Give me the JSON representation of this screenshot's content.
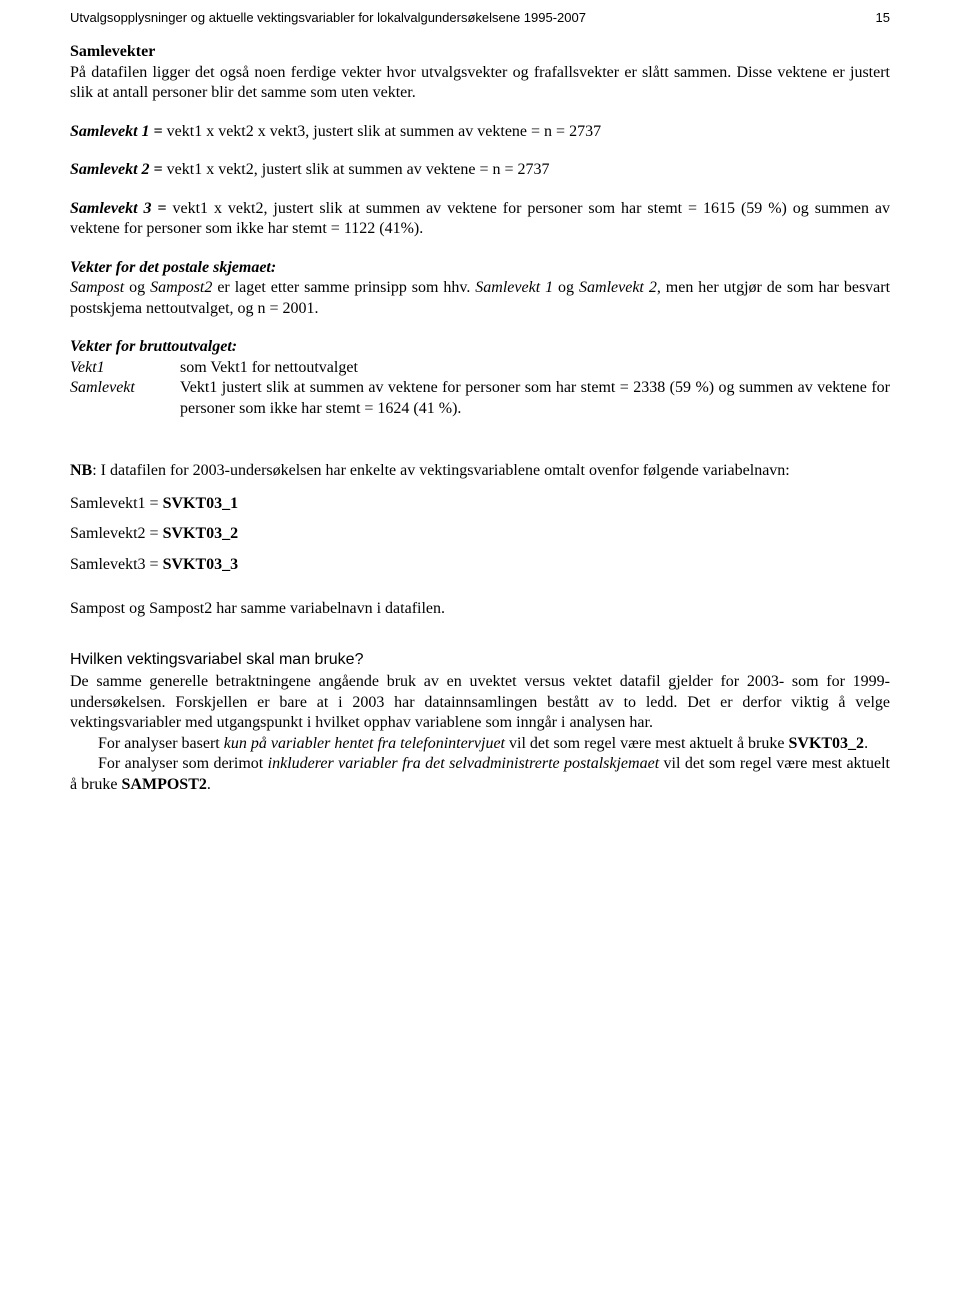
{
  "header": {
    "title": "Utvalgsopplysninger og aktuelle vektingsvariabler for lokalvalgundersøkelsene 1995-2007",
    "page": "15"
  },
  "samlevekter": {
    "heading": "Samlevekter",
    "intro": "På datafilen ligger det også noen ferdige vekter hvor utvalgsvekter og frafallsvekter er slått sammen. Disse vektene er justert slik at antall personer blir det samme som uten vekter.",
    "s1_label": "Samlevekt 1 = ",
    "s1_text": "vekt1 x vekt2 x vekt3, justert slik at summen av vektene = n = 2737",
    "s2_label": "Samlevekt 2 = ",
    "s2_text": "vekt1 x vekt2, justert slik at summen av vektene = n = 2737",
    "s3_label": "Samlevekt 3 = ",
    "s3_text": "vekt1 x vekt2, justert slik at summen av vektene for personer som har stemt = 1615 (59 %) og summen av vektene for personer som ikke har stemt = 1122 (41%)."
  },
  "postale": {
    "heading": "Vekter for det postale skjemaet:",
    "p1a": "Sampost",
    "p1b": " og ",
    "p1c": "Sampost2",
    "p1d": " er laget etter samme prinsipp som hhv. ",
    "p1e": "Samlevekt 1",
    "p1f": " og ",
    "p1g": "Samlevekt 2",
    "p1h": ", men her utgjør de som har besvart postskjema nettoutvalget, og n = 2001."
  },
  "brutto": {
    "heading": "Vekter for bruttoutvalget:",
    "r1_term": "Vekt1",
    "r1_desc": "som Vekt1 for nettoutvalget",
    "r2_term": "Samlevekt",
    "r2_desc": "Vekt1 justert slik at summen av vektene for personer som har stemt = 2338 (59 %) og summen av vektene for personer som ikke har stemt = 1624 (41 %)."
  },
  "nb": {
    "lead": "NB",
    "text": ": I datafilen for 2003-undersøkelsen har enkelte av vektingsvariablene omtalt ovenfor følgende variabelnavn:",
    "v1a": "Samlevekt1 = ",
    "v1b": "SVKT03_1",
    "v2a": "Samlevekt2 = ",
    "v2b": "SVKT03_2",
    "v3a": "Samlevekt3 = ",
    "v3b": "SVKT03_3",
    "sampost": "Sampost og Sampost2 har samme variabelnavn i datafilen."
  },
  "hvilken": {
    "heading": "Hvilken vektingsvariabel skal man bruke?",
    "p1": "De samme generelle betraktningene angående bruk av en uvektet versus vektet datafil gjelder for 2003- som for 1999-undersøkelsen. Forskjellen er bare at i 2003 har datainnsamlingen bestått av to ledd. Det er derfor viktig å velge vektingsvariabler med utgangspunkt i hvilket opphav variablene som inngår i analysen har.",
    "p2a": "For analyser basert ",
    "p2b": "kun på variabler hentet fra telefonintervjuet",
    "p2c": " vil det som regel være mest aktuelt å bruke ",
    "p2d": "SVKT03_2",
    "p2e": ".",
    "p3a": "For analyser som derimot ",
    "p3b": "inkluderer variabler fra det selvadministrerte postalskjemaet",
    "p3c": " vil det som regel være mest aktuelt å bruke ",
    "p3d": "SAMPOST2",
    "p3e": "."
  }
}
